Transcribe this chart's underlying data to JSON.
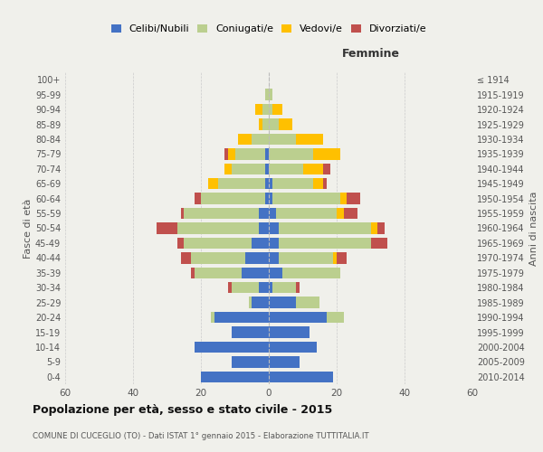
{
  "age_groups": [
    "0-4",
    "5-9",
    "10-14",
    "15-19",
    "20-24",
    "25-29",
    "30-34",
    "35-39",
    "40-44",
    "45-49",
    "50-54",
    "55-59",
    "60-64",
    "65-69",
    "70-74",
    "75-79",
    "80-84",
    "85-89",
    "90-94",
    "95-99",
    "100+"
  ],
  "birth_years": [
    "2010-2014",
    "2005-2009",
    "2000-2004",
    "1995-1999",
    "1990-1994",
    "1985-1989",
    "1980-1984",
    "1975-1979",
    "1970-1974",
    "1965-1969",
    "1960-1964",
    "1955-1959",
    "1950-1954",
    "1945-1949",
    "1940-1944",
    "1935-1939",
    "1930-1934",
    "1925-1929",
    "1920-1924",
    "1915-1919",
    "≤ 1914"
  ],
  "male": {
    "celibi": [
      20,
      11,
      22,
      11,
      16,
      5,
      3,
      8,
      7,
      5,
      3,
      3,
      1,
      1,
      1,
      1,
      0,
      0,
      0,
      0,
      0
    ],
    "coniugati": [
      0,
      0,
      0,
      0,
      1,
      1,
      8,
      14,
      16,
      20,
      24,
      22,
      19,
      14,
      10,
      9,
      5,
      2,
      2,
      1,
      0
    ],
    "vedovi": [
      0,
      0,
      0,
      0,
      0,
      0,
      0,
      0,
      0,
      0,
      0,
      0,
      0,
      3,
      2,
      2,
      4,
      1,
      2,
      0,
      0
    ],
    "divorziati": [
      0,
      0,
      0,
      0,
      0,
      0,
      1,
      1,
      3,
      2,
      6,
      1,
      2,
      0,
      0,
      1,
      0,
      0,
      0,
      0,
      0
    ]
  },
  "female": {
    "nubili": [
      19,
      9,
      14,
      12,
      17,
      8,
      1,
      4,
      3,
      3,
      3,
      2,
      1,
      1,
      0,
      0,
      0,
      0,
      0,
      0,
      0
    ],
    "coniugate": [
      0,
      0,
      0,
      0,
      5,
      7,
      7,
      17,
      16,
      27,
      27,
      18,
      20,
      12,
      10,
      13,
      8,
      3,
      1,
      1,
      0
    ],
    "vedove": [
      0,
      0,
      0,
      0,
      0,
      0,
      0,
      0,
      1,
      0,
      2,
      2,
      2,
      3,
      6,
      8,
      8,
      4,
      3,
      0,
      0
    ],
    "divorziate": [
      0,
      0,
      0,
      0,
      0,
      0,
      1,
      0,
      3,
      5,
      2,
      4,
      4,
      1,
      2,
      0,
      0,
      0,
      0,
      0,
      0
    ]
  },
  "colors": {
    "celibi": "#4472C4",
    "coniugati": "#BBCF8F",
    "vedovi": "#FFC000",
    "divorziati": "#C0504D"
  },
  "xlim": 60,
  "title": "Popolazione per età, sesso e stato civile - 2015",
  "subtitle": "COMUNE DI CUCEGLIO (TO) - Dati ISTAT 1° gennaio 2015 - Elaborazione TUTTITALIA.IT",
  "ylabel_left": "Fasce di età",
  "ylabel_right": "Anni di nascita",
  "xlabel_right": "Femmine",
  "legend_labels": [
    "Celibi/Nubili",
    "Coniugati/e",
    "Vedovi/e",
    "Divorziati/e"
  ],
  "bg_color": "#f0f0eb"
}
